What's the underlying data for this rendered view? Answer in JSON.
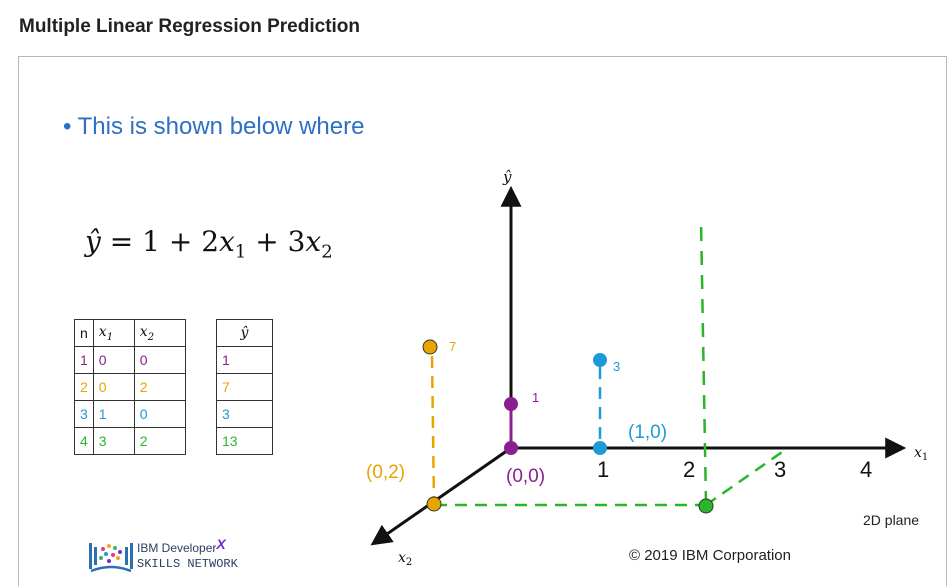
{
  "header": {
    "title": "Multiple Linear Regression Prediction"
  },
  "slide": {
    "bullet": "This is shown below where",
    "equation": {
      "lhs": "ŷ",
      "eq": "=",
      "b0": "1",
      "plus1": "+",
      "t1_coef": "2",
      "t1_var": "x",
      "t1_sub": "1",
      "plus2": "+",
      "t2_coef": "3",
      "t2_var": "x",
      "t2_sub": "2"
    },
    "input_table": {
      "headers": {
        "n": "n",
        "x1_var": "x",
        "x1_sub": "1",
        "x2_var": "x",
        "x2_sub": "2"
      },
      "rows": [
        {
          "n": "1",
          "x1": "0",
          "x2": "0"
        },
        {
          "n": "2",
          "x1": "0",
          "x2": "2"
        },
        {
          "n": "3",
          "x1": "1",
          "x2": "0"
        },
        {
          "n": "4",
          "x1": "3",
          "x2": "2"
        }
      ]
    },
    "yhat_table": {
      "header": "ŷ",
      "rows": [
        "1",
        "7",
        "3",
        "13"
      ]
    },
    "axes": {
      "y_label": "ŷ",
      "x1_var": "x",
      "x1_sub": "1",
      "x2_var": "x",
      "x2_sub": "2",
      "x1_ticks": [
        "1",
        "2",
        "3",
        "4"
      ]
    },
    "points": [
      {
        "label": "(0,0)",
        "value": "1"
      },
      {
        "label": "(1,0)",
        "value": "3"
      },
      {
        "label": "(0,2)",
        "value": "7"
      }
    ],
    "plane_label": "2D plane",
    "copyright": "© 2019 IBM Corporation",
    "logo": {
      "line1": "IBM Developer",
      "sup": "X",
      "line2": "SKILLS NETWORK"
    }
  },
  "colors": {
    "purple": "#8b1f8f",
    "yellow": "#e8a500",
    "blue": "#1e9ad6",
    "green": "#2ab52a",
    "bullet": "#2f6fc4"
  }
}
